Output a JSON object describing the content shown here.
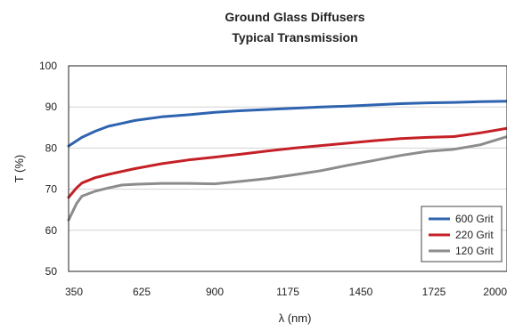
{
  "chart_data": {
    "type": "line",
    "title": "Ground Glass Diffusers",
    "subtitle": "Typical Transmission",
    "xlabel": "λ (nm)",
    "ylabel": "T (%)",
    "xlim": [
      350,
      2000
    ],
    "ylim": [
      50,
      100
    ],
    "xticks": [
      350,
      625,
      900,
      1175,
      1450,
      1725,
      2000
    ],
    "yticks": [
      50,
      60,
      70,
      80,
      90,
      100
    ],
    "grid": "horizontal",
    "legend_position": "bottom-right",
    "series": [
      {
        "name": "600 Grit",
        "color": "#2e63b0",
        "x": [
          350,
          400,
          450,
          500,
          550,
          600,
          700,
          800,
          900,
          1000,
          1100,
          1200,
          1300,
          1400,
          1500,
          1600,
          1700,
          1800,
          1900,
          2000
        ],
        "y": [
          80.5,
          82.6,
          84.1,
          85.3,
          86.0,
          86.7,
          87.6,
          88.1,
          88.7,
          89.1,
          89.4,
          89.7,
          90.0,
          90.2,
          90.5,
          90.8,
          91.0,
          91.1,
          91.3,
          91.4
        ]
      },
      {
        "name": "220 Grit",
        "color": "#c42026",
        "x": [
          350,
          380,
          400,
          450,
          500,
          600,
          700,
          800,
          900,
          1000,
          1100,
          1200,
          1300,
          1400,
          1500,
          1600,
          1700,
          1800,
          1900,
          2000
        ],
        "y": [
          68.0,
          70.3,
          71.5,
          72.8,
          73.6,
          75.0,
          76.2,
          77.1,
          77.8,
          78.5,
          79.3,
          80.0,
          80.6,
          81.2,
          81.8,
          82.3,
          82.6,
          82.8,
          83.7,
          84.8
        ]
      },
      {
        "name": "120 Grit",
        "color": "#8c8c8c",
        "x": [
          350,
          380,
          400,
          450,
          500,
          550,
          600,
          700,
          800,
          900,
          1000,
          1100,
          1200,
          1300,
          1400,
          1500,
          1600,
          1700,
          1800,
          1900,
          2000
        ],
        "y": [
          62.5,
          66.5,
          68.3,
          69.5,
          70.3,
          71.0,
          71.2,
          71.4,
          71.4,
          71.3,
          71.9,
          72.6,
          73.5,
          74.5,
          75.8,
          77.0,
          78.2,
          79.2,
          79.7,
          80.8,
          82.8
        ]
      }
    ]
  }
}
